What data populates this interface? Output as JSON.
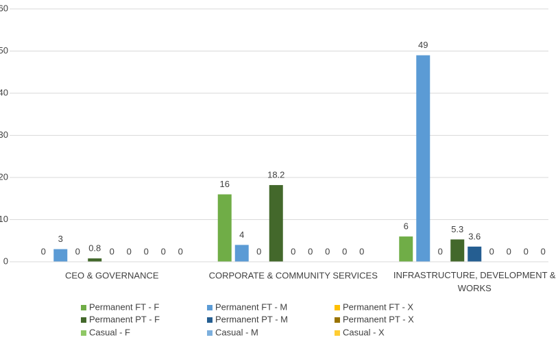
{
  "chart_data": {
    "type": "bar",
    "categories": [
      "CEO & GOVERNANCE",
      "CORPORATE & COMMUNITY SERVICES",
      "INFRASTRUCTURE, DEVELOPMENT & WORKS"
    ],
    "series": [
      {
        "name": "Permanent FT - F",
        "color": "#70ad47",
        "values": [
          0,
          16,
          6
        ]
      },
      {
        "name": "Permanent FT - M",
        "color": "#5b9bd5",
        "values": [
          3,
          4,
          49
        ]
      },
      {
        "name": "Permanent FT - X",
        "color": "#ffc000",
        "values": [
          0,
          0,
          0
        ]
      },
      {
        "name": "Permanent PT - F",
        "color": "#43682b",
        "values": [
          0.8,
          18.2,
          5.3
        ]
      },
      {
        "name": "Permanent PT - M",
        "color": "#255e91",
        "values": [
          0,
          0,
          3.6
        ]
      },
      {
        "name": "Permanent PT - X",
        "color": "#997300",
        "values": [
          0,
          0,
          0
        ]
      },
      {
        "name": "Casual - F",
        "color": "#8fc866",
        "values": [
          0,
          0,
          0
        ]
      },
      {
        "name": "Casual - M",
        "color": "#7cafdd",
        "values": [
          0,
          0,
          0
        ]
      },
      {
        "name": "Casual - X",
        "color": "#ffcd33",
        "values": [
          0,
          0,
          0
        ]
      }
    ],
    "ylim": [
      0,
      60
    ],
    "yticks": [
      0,
      10,
      20,
      30,
      40,
      50,
      60
    ],
    "grid": true,
    "legend": "bottom"
  }
}
